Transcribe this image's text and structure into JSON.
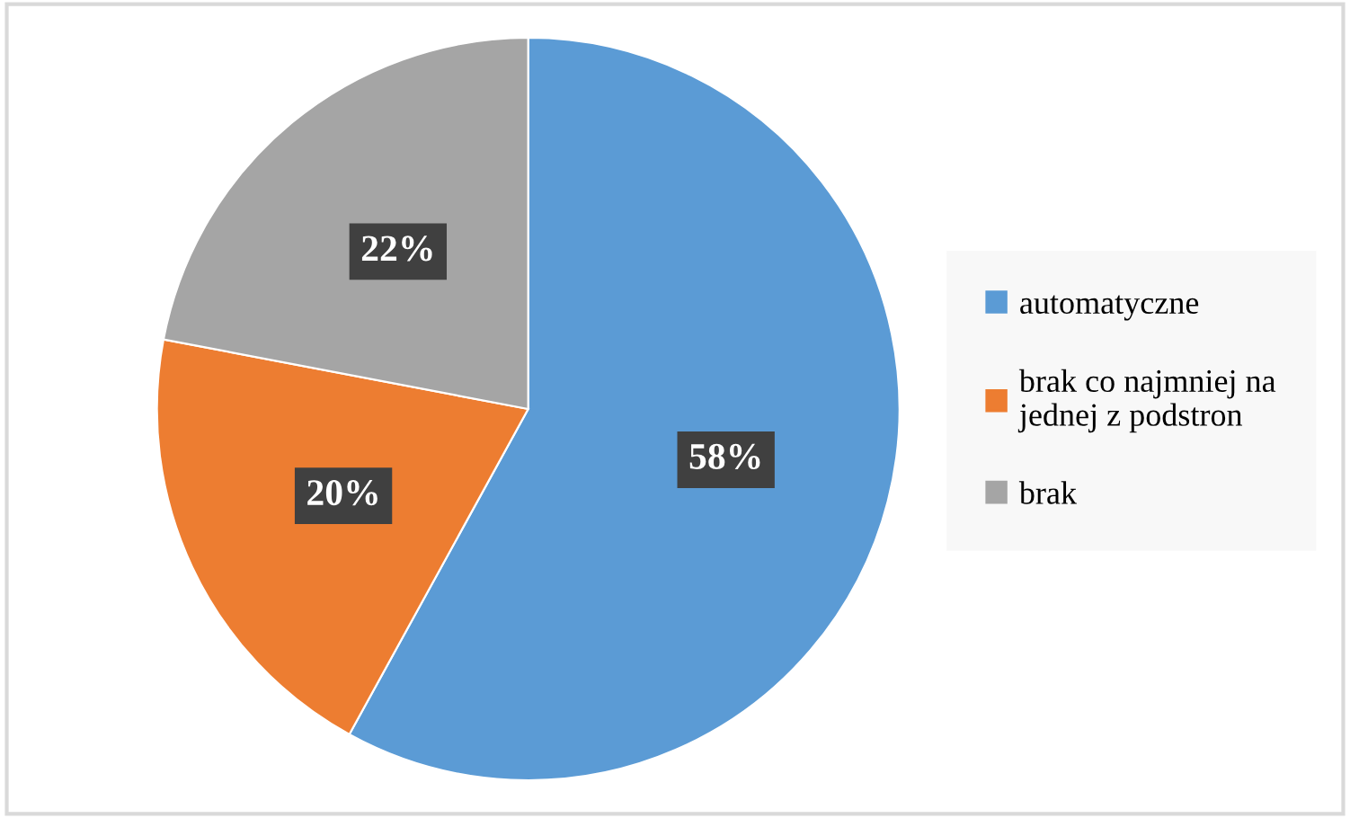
{
  "chart_data": {
    "type": "pie",
    "categories": [
      "automatyczne",
      "brak co najmniej na jednej z podstron",
      "brak"
    ],
    "values": [
      58,
      20,
      22
    ],
    "colors": [
      "#5b9bd5",
      "#ed7d31",
      "#a5a5a5"
    ],
    "value_labels": [
      "58%",
      "20%",
      "22%"
    ],
    "legend": "right"
  }
}
